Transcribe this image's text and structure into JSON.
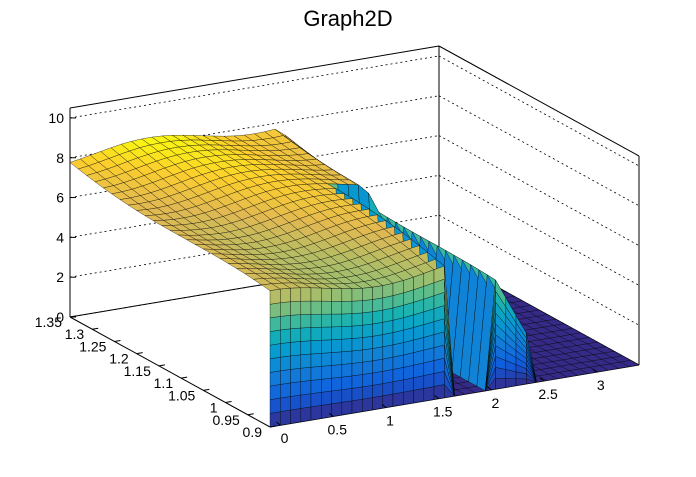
{
  "chart_data": {
    "type": "surface",
    "title": "Graph2D",
    "xlabel": "",
    "ylabel": "",
    "zlabel": "",
    "x_ticks": [
      "0",
      "0.5",
      "1",
      "1.5",
      "2",
      "2.5",
      "3"
    ],
    "y_ticks": [
      "0.9",
      "0.95",
      "1",
      "1.05",
      "1.1",
      "1.15",
      "1.2",
      "1.25",
      "1.3",
      "1.35"
    ],
    "z_ticks": [
      "0",
      "2",
      "4",
      "6",
      "8",
      "10"
    ],
    "xlim": [
      -0.1,
      3.4
    ],
    "ylim": [
      0.9,
      1.35
    ],
    "zlim": [
      0,
      10.5
    ],
    "grid": true,
    "colormap": "parula-like",
    "colors": {
      "low": "#352a87",
      "mid": "#13b0a6",
      "high": "#f9fb0e",
      "mesh_line": "#000000"
    },
    "surface_description_values": {
      "plateau_height_low_y": 6.5,
      "plateau_height_high_y": 8.0,
      "floor_height": 0.0,
      "gap_x_range": [
        1.6,
        1.95
      ],
      "edge_x_range": [
        -0.1,
        2.35
      ]
    }
  }
}
